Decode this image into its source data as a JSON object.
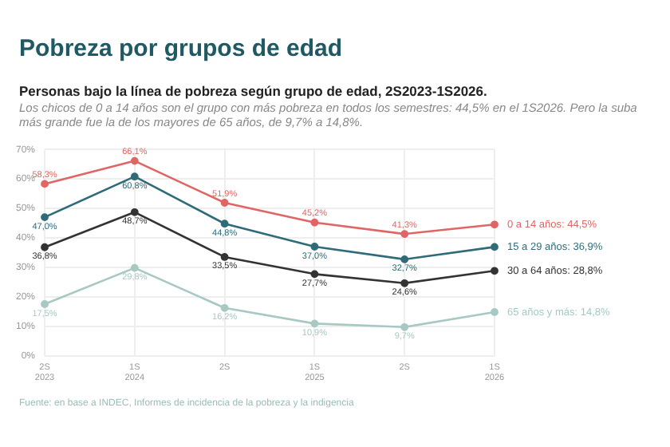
{
  "chart_data": {
    "type": "line",
    "title": "Pobreza por grupos de edad",
    "subtitle": "Personas bajo la línea de pobreza según grupo de edad, 2S2023-1S2026.",
    "annotations": [
      "Los chicos de 0 a 14 años son el grupo con más pobreza en todos los semestres: 44,5% en el 1S2026. Pero la suba más grande fue la de los mayores de 65 años, de 9,7% a 14,8%.",
      "Fuente: en base a INDEC, Informes de incidencia de la pobreza y la indigencia"
    ],
    "categories": [
      "2S\n2023",
      "1S\n2024",
      "2S",
      "1S\n2025",
      "2S",
      "1S\n2026"
    ],
    "series": [
      {
        "name": "0 a 14 años: 44,5%",
        "color": "#e06666",
        "values": [
          58.3,
          66.1,
          51.9,
          45.2,
          41.3,
          44.5
        ],
        "value_labels": [
          "58,3%",
          "66,1%",
          "51,9%",
          "45,2%",
          "41,3%",
          null
        ]
      },
      {
        "name": "15 a 29 años: 36,9%",
        "color": "#2f6b78",
        "values": [
          47.0,
          60.8,
          44.8,
          37.0,
          32.7,
          36.9
        ],
        "value_labels": [
          "47,0%",
          "60,8%",
          "44,8%",
          "37,0%",
          "32,7%",
          null
        ]
      },
      {
        "name": "30 a 64 años: 28,8%",
        "color": "#333333",
        "values": [
          36.8,
          48.7,
          33.5,
          27.7,
          24.6,
          28.8
        ],
        "value_labels": [
          "36,8%",
          "48,7%",
          "33,5%",
          "27,7%",
          "24,6%",
          null
        ]
      },
      {
        "name": "65 años y más: 14,8%",
        "color": "#a8c8c4",
        "values": [
          17.5,
          29.8,
          16.2,
          10.9,
          9.7,
          14.8
        ],
        "value_labels": [
          "17,5%",
          "29,8%",
          "16,2%",
          "10,9%",
          "9,7%",
          null
        ]
      }
    ],
    "ylim": [
      0,
      70
    ],
    "yticks": [
      {
        "value": 0,
        "label": "0%"
      },
      {
        "value": 10,
        "label": "10%"
      },
      {
        "value": 20,
        "label": "20%"
      },
      {
        "value": 30,
        "label": "30%"
      },
      {
        "value": 40,
        "label": "40%"
      },
      {
        "value": 50,
        "label": "50%"
      },
      {
        "value": 60,
        "label": "60%"
      },
      {
        "value": 70,
        "label": "70%"
      }
    ],
    "grid": true,
    "legend": false,
    "marker": "circle",
    "line_style": "solid"
  }
}
